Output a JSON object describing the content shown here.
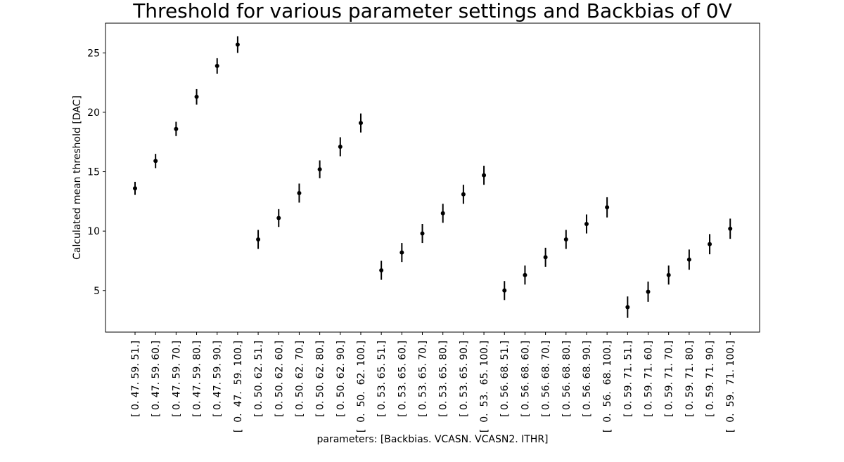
{
  "chart_data": {
    "type": "scatter",
    "title": "Threshold for various parameter settings and Backbias of 0V",
    "xlabel": "parameters: [Backbias. VCASN. VCASN2. ITHR]",
    "ylabel": "Calculated mean threshold [DAC]",
    "ylim": [
      1.5,
      27.5
    ],
    "yticks": [
      5,
      10,
      15,
      20,
      25
    ],
    "grid": false,
    "legend": "none",
    "marker_color": "#000000",
    "categories": [
      "[ 0. 47. 59. 51.]",
      "[ 0. 47. 59. 60.]",
      "[ 0. 47. 59. 70.]",
      "[ 0. 47. 59. 80.]",
      "[ 0. 47. 59. 90.]",
      "[  0.  47.  59. 100.]",
      "[ 0. 50. 62. 51.]",
      "[ 0. 50. 62. 60.]",
      "[ 0. 50. 62. 70.]",
      "[ 0. 50. 62. 80.]",
      "[ 0. 50. 62. 90.]",
      "[  0.  50.  62. 100.]",
      "[ 0. 53. 65. 51.]",
      "[ 0. 53. 65. 60.]",
      "[ 0. 53. 65. 70.]",
      "[ 0. 53. 65. 80.]",
      "[ 0. 53. 65. 90.]",
      "[  0.  53.  65. 100.]",
      "[ 0. 56. 68. 51.]",
      "[ 0. 56. 68. 60.]",
      "[ 0. 56. 68. 70.]",
      "[ 0. 56. 68. 80.]",
      "[ 0. 56. 68. 90.]",
      "[  0.  56.  68. 100.]",
      "[ 0. 59. 71. 51.]",
      "[ 0. 59. 71. 60.]",
      "[ 0. 59. 71. 70.]",
      "[ 0. 59. 71. 80.]",
      "[ 0. 59. 71. 90.]",
      "[  0.  59.  71. 100.]"
    ],
    "values": [
      13.6,
      15.9,
      18.6,
      21.3,
      23.9,
      25.7,
      9.3,
      11.1,
      13.2,
      15.2,
      17.1,
      19.1,
      6.7,
      8.2,
      9.8,
      11.5,
      13.1,
      14.7,
      5.0,
      6.3,
      7.8,
      9.3,
      10.6,
      12.0,
      3.6,
      4.9,
      6.3,
      7.6,
      8.9,
      10.2
    ],
    "errors": [
      0.55,
      0.6,
      0.6,
      0.65,
      0.65,
      0.7,
      0.8,
      0.75,
      0.8,
      0.75,
      0.8,
      0.8,
      0.8,
      0.8,
      0.8,
      0.8,
      0.8,
      0.8,
      0.8,
      0.8,
      0.8,
      0.8,
      0.8,
      0.85,
      0.9,
      0.85,
      0.8,
      0.85,
      0.85,
      0.85
    ]
  }
}
